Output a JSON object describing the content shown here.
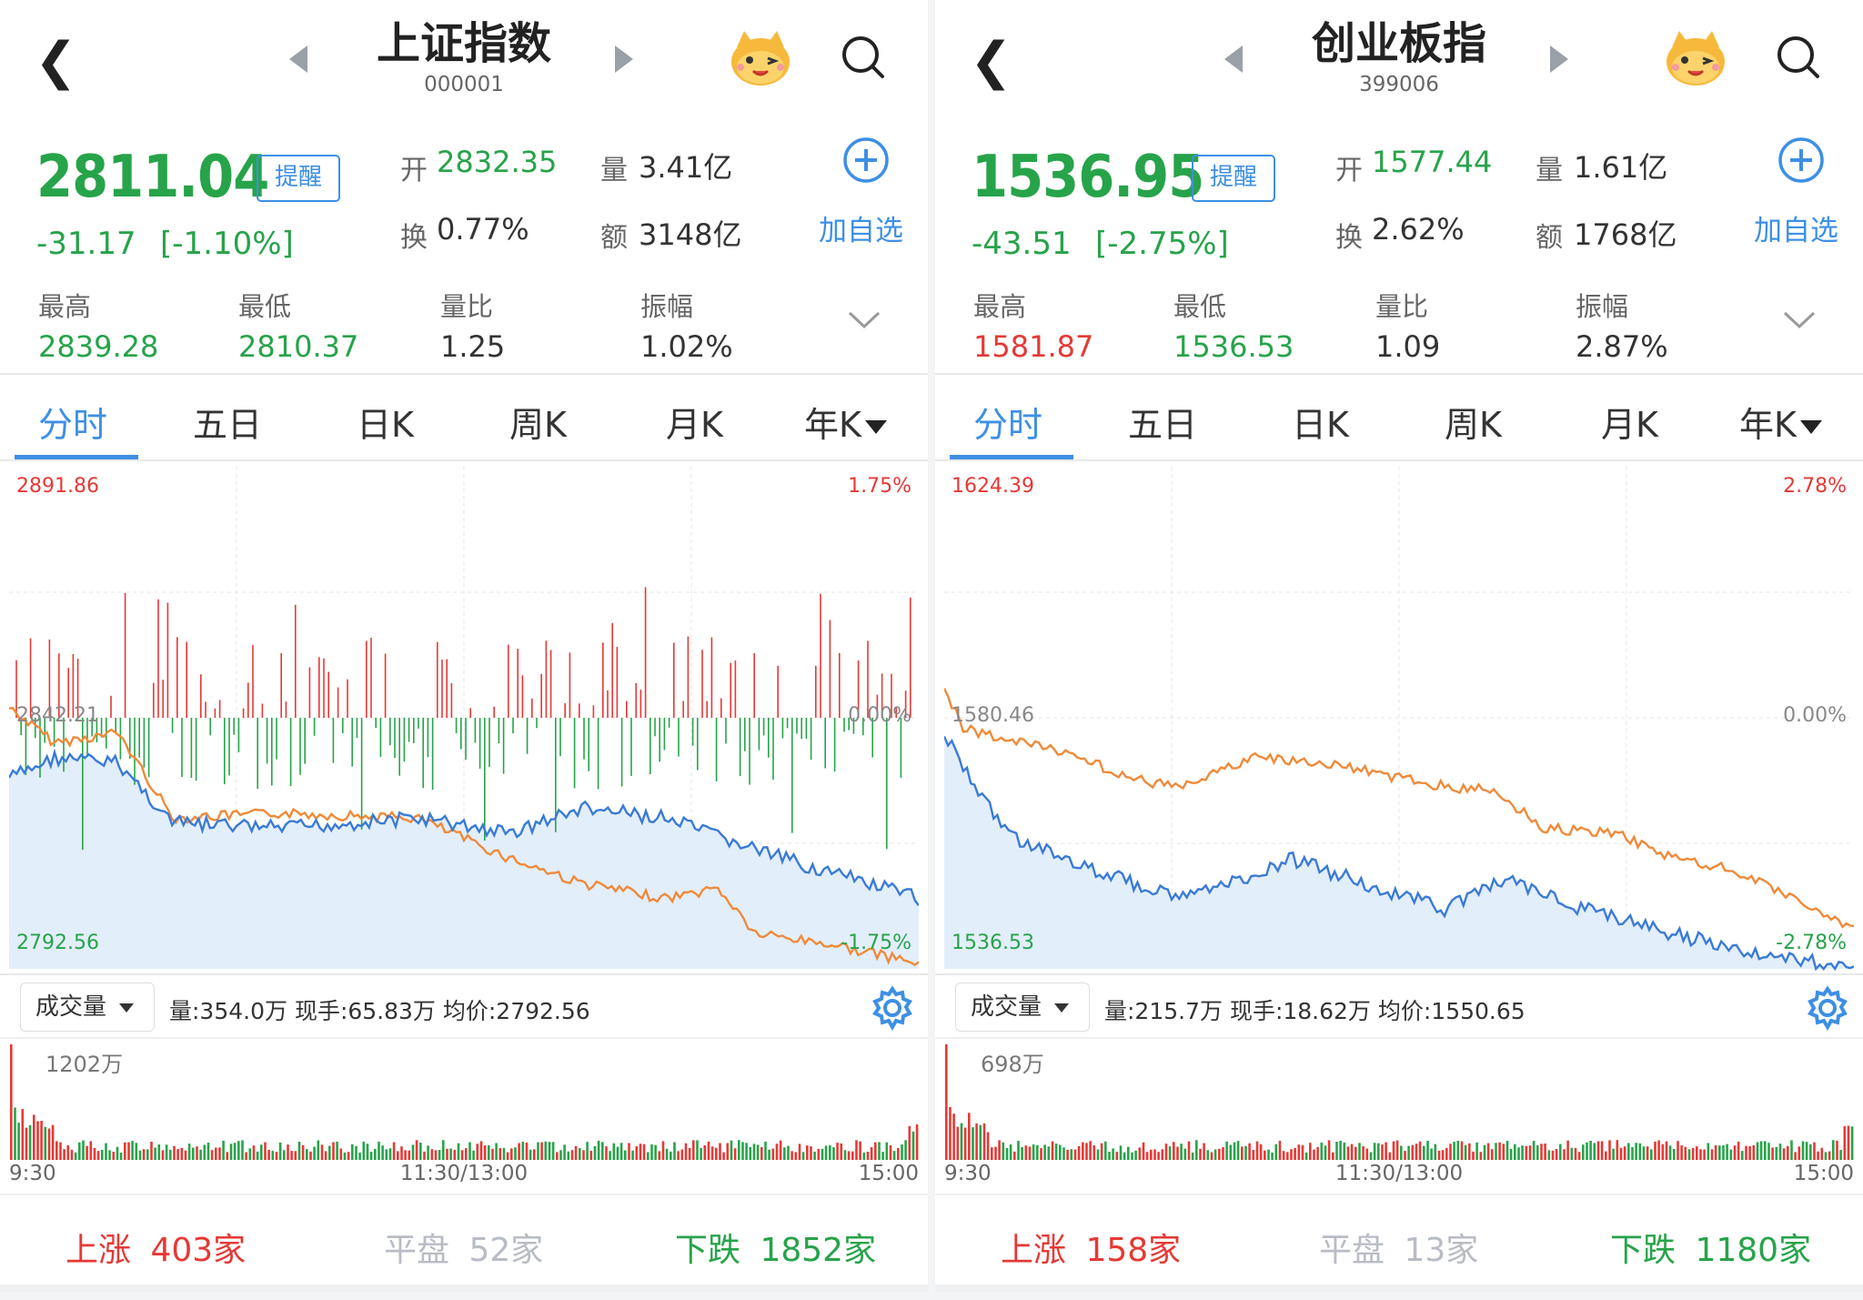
{
  "panels": [
    {
      "title": "上证指数",
      "code": "000001",
      "price": "2811.04",
      "remind_label": "提醒",
      "change": "-31.17",
      "change_pct": "[-1.10%]",
      "open_label": "开",
      "open": "2832.35",
      "vol_label": "量",
      "volume": "3.41亿",
      "turnover_label": "换",
      "turnover": "0.77%",
      "amount_label": "额",
      "amount": "3148亿",
      "add_label": "加自选",
      "stats": [
        {
          "label": "最高",
          "value": "2839.28",
          "color": "green"
        },
        {
          "label": "最低",
          "value": "2810.37",
          "color": "green"
        },
        {
          "label": "量比",
          "value": "1.25",
          "color": "dark"
        },
        {
          "label": "振幅",
          "value": "1.02%",
          "color": "dark"
        }
      ],
      "tabs": [
        "分时",
        "五日",
        "日K",
        "周K",
        "月K",
        "年K"
      ],
      "active_tab": 0,
      "chart": {
        "top_left": "2891.86",
        "top_right": "1.75%",
        "mid_left": "2842.21",
        "mid_right": "0.00%",
        "bottom_left": "2792.56",
        "bottom_right": "-1.75%"
      },
      "volume_ctrl": "成交量",
      "vol_info": "量:354.0万  现手:65.83万  均价:2792.56",
      "vol_max": "1202万",
      "times": [
        "9:30",
        "11:30/13:00",
        "15:00"
      ],
      "footer": {
        "up_label": "上涨",
        "up": "403家",
        "flat_label": "平盘",
        "flat": "52家",
        "down_label": "下跌",
        "down": "1852家"
      }
    },
    {
      "title": "创业板指",
      "code": "399006",
      "price": "1536.95",
      "remind_label": "提醒",
      "change": "-43.51",
      "change_pct": "[-2.75%]",
      "open_label": "开",
      "open": "1577.44",
      "vol_label": "量",
      "volume": "1.61亿",
      "turnover_label": "换",
      "turnover": "2.62%",
      "amount_label": "额",
      "amount": "1768亿",
      "add_label": "加自选",
      "stats": [
        {
          "label": "最高",
          "value": "1581.87",
          "color": "red"
        },
        {
          "label": "最低",
          "value": "1536.53",
          "color": "green"
        },
        {
          "label": "量比",
          "value": "1.09",
          "color": "dark"
        },
        {
          "label": "振幅",
          "value": "2.87%",
          "color": "dark"
        }
      ],
      "tabs": [
        "分时",
        "五日",
        "日K",
        "周K",
        "月K",
        "年K"
      ],
      "active_tab": 0,
      "chart": {
        "top_left": "1624.39",
        "top_right": "2.78%",
        "mid_left": "1580.46",
        "mid_right": "0.00%",
        "bottom_left": "1536.53",
        "bottom_right": "-2.78%"
      },
      "volume_ctrl": "成交量",
      "vol_info": "量:215.7万  现手:18.62万  均价:1550.65",
      "vol_max": "698万",
      "times": [
        "9:30",
        "11:30/13:00",
        "15:00"
      ],
      "footer": {
        "up_label": "上涨",
        "up": "158家",
        "flat_label": "平盘",
        "flat": "13家",
        "down_label": "下跌",
        "down": "1180家"
      }
    }
  ],
  "colors": {
    "up": "#e53935",
    "down": "#27a34a",
    "accent": "#3d8fe5",
    "price_line": "#3a7bd5",
    "avg_line": "#ee8a3a",
    "fill": "#e3eefb"
  },
  "icons": [
    "back-icon",
    "prev-arrow-icon",
    "next-arrow-icon",
    "mascot-icon",
    "search-icon",
    "add-icon",
    "chevron-down-icon",
    "dropdown-triangle-icon",
    "settings-gear-icon"
  ]
}
